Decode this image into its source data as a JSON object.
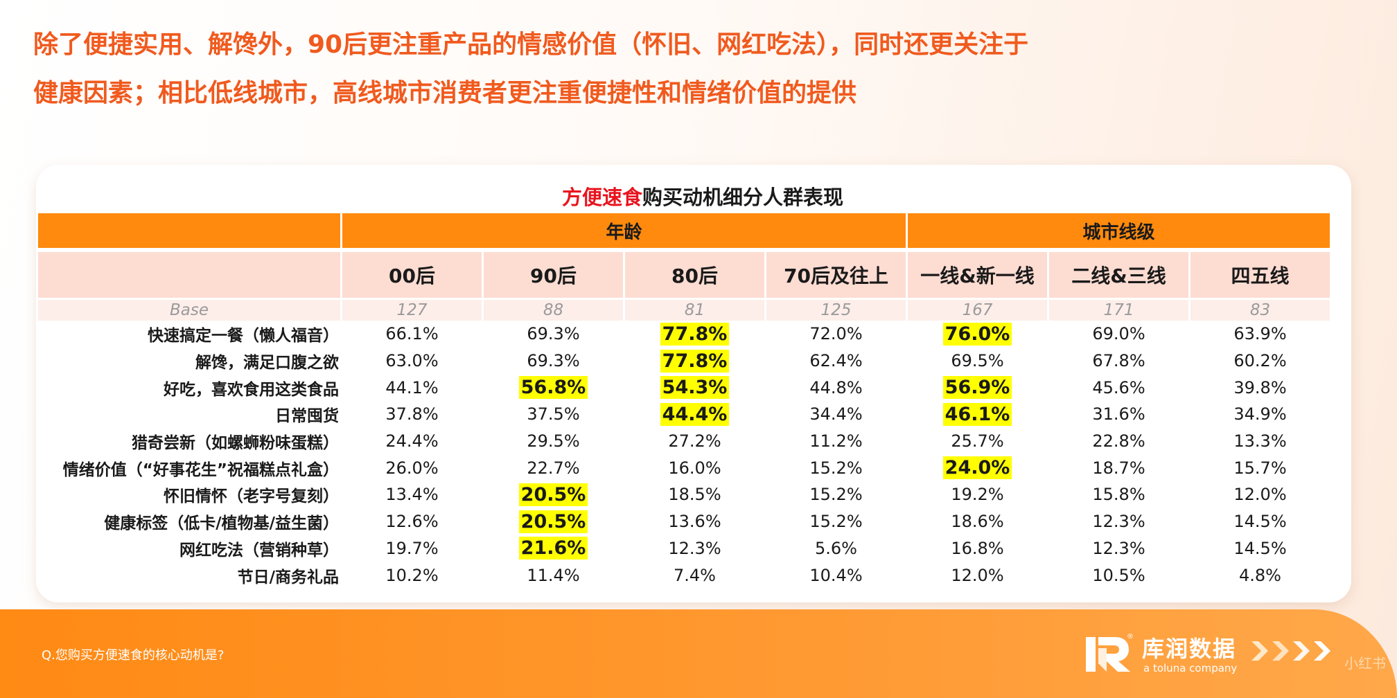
{
  "headline": "除了便捷实用、解馋外，90后更注重产品的情感价值（怀旧、网红吃法），同时还更关注于健康因素；相比低线城市，高线城市消费者更注重便捷性和情绪价值的提供",
  "chart_data": {
    "type": "table",
    "title_accent": "方便速食",
    "title_rest": "购买动机细分人群表现",
    "groups": [
      {
        "label": "年龄",
        "span": 4
      },
      {
        "label": "城市线级",
        "span": 3
      }
    ],
    "columns": [
      "00后",
      "90后",
      "80后",
      "70后及往上",
      "一线&新一线",
      "二线&三线",
      "四五线"
    ],
    "base_label": "Base",
    "base": [
      "127",
      "88",
      "81",
      "125",
      "167",
      "171",
      "83"
    ],
    "rows": [
      {
        "label": "快速搞定一餐（懒人福音）",
        "values": [
          "66.1%",
          "69.3%",
          "77.8%",
          "72.0%",
          "76.0%",
          "69.0%",
          "63.9%"
        ],
        "highlight": [
          false,
          false,
          true,
          false,
          true,
          false,
          false
        ]
      },
      {
        "label": "解馋，满足口腹之欲",
        "values": [
          "63.0%",
          "69.3%",
          "77.8%",
          "62.4%",
          "69.5%",
          "67.8%",
          "60.2%"
        ],
        "highlight": [
          false,
          false,
          true,
          false,
          false,
          false,
          false
        ]
      },
      {
        "label": "好吃，喜欢食用这类食品",
        "values": [
          "44.1%",
          "56.8%",
          "54.3%",
          "44.8%",
          "56.9%",
          "45.6%",
          "39.8%"
        ],
        "highlight": [
          false,
          true,
          true,
          false,
          true,
          false,
          false
        ]
      },
      {
        "label": "日常囤货",
        "values": [
          "37.8%",
          "37.5%",
          "44.4%",
          "34.4%",
          "46.1%",
          "31.6%",
          "34.9%"
        ],
        "highlight": [
          false,
          false,
          true,
          false,
          true,
          false,
          false
        ]
      },
      {
        "label": "猎奇尝新（如螺蛳粉味蛋糕）",
        "values": [
          "24.4%",
          "29.5%",
          "27.2%",
          "11.2%",
          "25.7%",
          "22.8%",
          "13.3%"
        ],
        "highlight": [
          false,
          false,
          false,
          false,
          false,
          false,
          false
        ]
      },
      {
        "label": "情绪价值（“好事花生”祝福糕点礼盒）",
        "values": [
          "26.0%",
          "22.7%",
          "16.0%",
          "15.2%",
          "24.0%",
          "18.7%",
          "15.7%"
        ],
        "highlight": [
          false,
          false,
          false,
          false,
          true,
          false,
          false
        ]
      },
      {
        "label": "怀旧情怀（老字号复刻）",
        "values": [
          "13.4%",
          "20.5%",
          "18.5%",
          "15.2%",
          "19.2%",
          "15.8%",
          "12.0%"
        ],
        "highlight": [
          false,
          true,
          false,
          false,
          false,
          false,
          false
        ]
      },
      {
        "label": "健康标签（低卡/植物基/益生菌）",
        "values": [
          "12.6%",
          "20.5%",
          "13.6%",
          "15.2%",
          "18.6%",
          "12.3%",
          "14.5%"
        ],
        "highlight": [
          false,
          true,
          false,
          false,
          false,
          false,
          false
        ]
      },
      {
        "label": "网红吃法（营销种草）",
        "values": [
          "19.7%",
          "21.6%",
          "12.3%",
          "5.6%",
          "16.8%",
          "12.3%",
          "14.5%"
        ],
        "highlight": [
          false,
          true,
          false,
          false,
          false,
          false,
          false
        ]
      },
      {
        "label": "节日/商务礼品",
        "values": [
          "10.2%",
          "11.4%",
          "7.4%",
          "10.4%",
          "12.0%",
          "10.5%",
          "4.8%"
        ],
        "highlight": [
          false,
          false,
          false,
          false,
          false,
          false,
          false
        ]
      }
    ],
    "colors": {
      "header_orange": "#ff8a0d",
      "column_header_pink": "#fddcd2",
      "highlight_yellow": "#ffff00",
      "headline_orange": "#f05a1e",
      "title_accent_red": "#e8141e"
    }
  },
  "footer": {
    "question": "Q.您购买方便速食的核心动机是?",
    "brand_name": "库润数据",
    "brand_sub": "a toluna company",
    "brand_reg": "®",
    "watermark": "小红书"
  }
}
